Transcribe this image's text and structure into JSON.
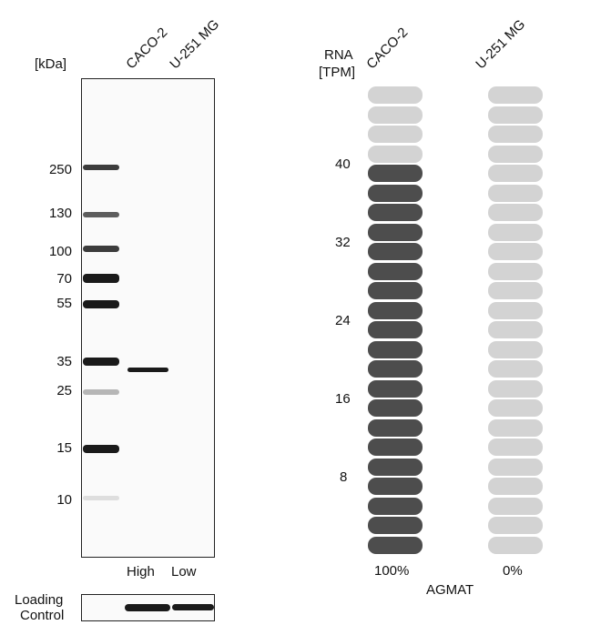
{
  "blot": {
    "kda_label": "[kDa]",
    "lanes": [
      "CACO-2",
      "U-251 MG"
    ],
    "markers": [
      "250",
      "130",
      "100",
      "70",
      "55",
      "35",
      "25",
      "15",
      "10"
    ],
    "lane_expression": [
      "High",
      "Low"
    ],
    "loading_control_label": [
      "Loading",
      "Control"
    ]
  },
  "rna": {
    "axis_label": [
      "RNA",
      "[TPM]"
    ],
    "columns": [
      "CACO-2",
      "U-251 MG"
    ],
    "ticks": [
      "40",
      "32",
      "24",
      "16",
      "8"
    ],
    "total_segments": 24,
    "filled_segments": [
      20,
      0
    ],
    "percentages": [
      "100%",
      "0%"
    ],
    "gene": "AGMAT",
    "colors": {
      "filled": "#4d4d4d",
      "empty": "#d3d3d3"
    }
  }
}
